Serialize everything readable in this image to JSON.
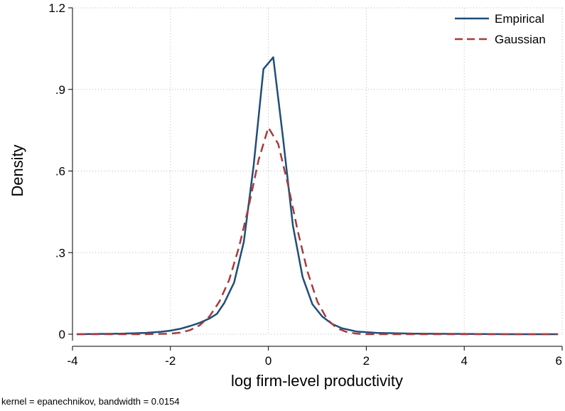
{
  "chart_data": {
    "type": "line",
    "xlabel": "log firm-level productivity",
    "ylabel": "Density",
    "note": "kernel = epanechnikov, bandwidth = 0.0154",
    "xlim": [
      -4,
      6
    ],
    "ylim": [
      0,
      1.2
    ],
    "xticks": [
      -4,
      -2,
      0,
      2,
      4,
      6
    ],
    "xtick_labels": [
      "-4",
      "-2",
      "0",
      "2",
      "4",
      "6"
    ],
    "yticks": [
      0,
      0.3,
      0.6,
      0.9,
      1.2
    ],
    "ytick_labels": [
      "0",
      ".3",
      ".6",
      ".9",
      "1.2"
    ],
    "grid": true,
    "legend_position": "top-right",
    "series": [
      {
        "name": "Empirical",
        "color": "#1f4e79",
        "style": "solid",
        "x": [
          -3.9,
          -3.0,
          -2.5,
          -2.2,
          -2.0,
          -1.8,
          -1.6,
          -1.4,
          -1.2,
          -1.05,
          -0.9,
          -0.7,
          -0.5,
          -0.3,
          -0.1,
          0.1,
          0.3,
          0.5,
          0.7,
          0.9,
          1.1,
          1.3,
          1.5,
          1.8,
          2.2,
          3.0,
          4.0,
          5.0,
          5.9
        ],
        "y": [
          0.0,
          0.002,
          0.005,
          0.009,
          0.013,
          0.02,
          0.03,
          0.042,
          0.058,
          0.075,
          0.115,
          0.19,
          0.34,
          0.62,
          0.975,
          1.018,
          0.72,
          0.4,
          0.21,
          0.11,
          0.065,
          0.038,
          0.022,
          0.01,
          0.005,
          0.002,
          0.001,
          0.0,
          0.0
        ]
      },
      {
        "name": "Gaussian",
        "color": "#a53c3c",
        "style": "dashed",
        "x": [
          -3.9,
          -3.0,
          -2.5,
          -2.0,
          -1.8,
          -1.6,
          -1.4,
          -1.2,
          -1.0,
          -0.8,
          -0.6,
          -0.4,
          -0.2,
          0.0,
          0.2,
          0.4,
          0.6,
          0.8,
          1.0,
          1.2,
          1.4,
          1.6,
          1.8,
          2.0,
          2.5,
          3.0,
          4.0,
          5.0,
          5.9
        ],
        "y": [
          0.0,
          0.0,
          0.0,
          0.002,
          0.006,
          0.015,
          0.033,
          0.066,
          0.12,
          0.2,
          0.32,
          0.47,
          0.64,
          0.76,
          0.7,
          0.55,
          0.38,
          0.23,
          0.12,
          0.055,
          0.022,
          0.008,
          0.002,
          0.0,
          0.0,
          0.0,
          0.0,
          0.0,
          0.0
        ]
      }
    ]
  }
}
